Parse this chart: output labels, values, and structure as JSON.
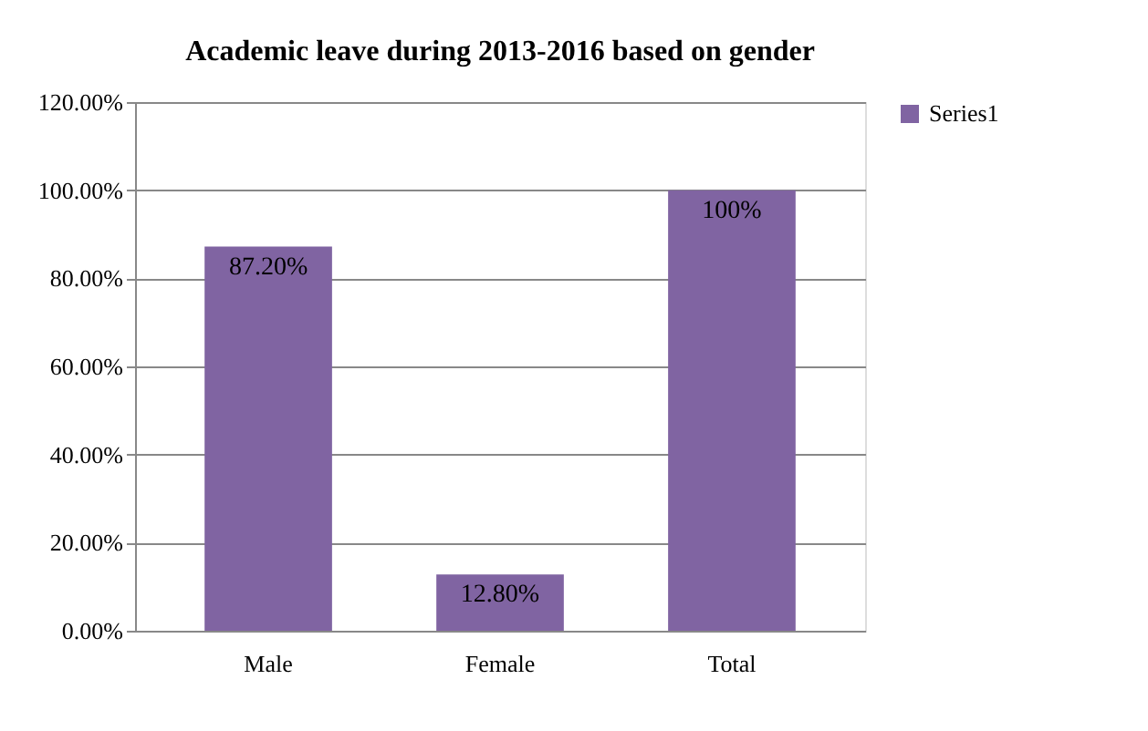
{
  "chart_data": {
    "type": "bar",
    "title": "Academic leave during 2013-2016 based on gender",
    "categories": [
      "Male",
      "Female",
      "Total"
    ],
    "series": [
      {
        "name": "Series1",
        "color": "#8064a2",
        "values": [
          87.2,
          12.8,
          100
        ],
        "value_labels": [
          "87.20%",
          "12.80%",
          "100%"
        ]
      }
    ],
    "ylim": [
      0,
      120
    ],
    "yticks": [
      {
        "value": 0,
        "label": "0.00%"
      },
      {
        "value": 20,
        "label": "20.00%"
      },
      {
        "value": 40,
        "label": "40.00%"
      },
      {
        "value": 60,
        "label": "60.00%"
      },
      {
        "value": 80,
        "label": "80.00%"
      },
      {
        "value": 100,
        "label": "100.00%"
      },
      {
        "value": 120,
        "label": "120.00%"
      }
    ],
    "grid": "y",
    "legend": "right"
  }
}
